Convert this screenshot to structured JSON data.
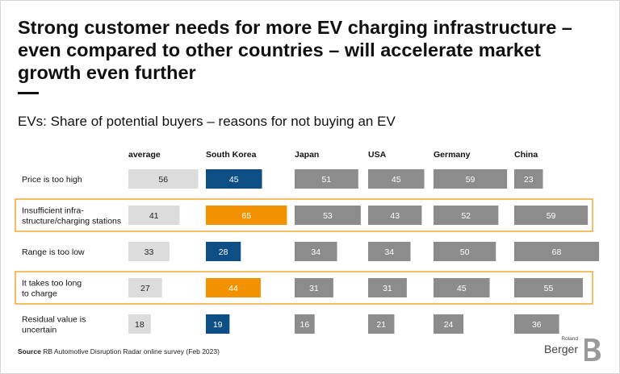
{
  "header": {
    "title": "Strong customer needs for more EV charging infrastructure – even compared to other countries – will accelerate market growth even further",
    "subtitle": "EVs: Share of potential buyers – reasons for not buying an EV"
  },
  "chart_data": {
    "type": "bar",
    "columns": [
      "average",
      "South Korea",
      "Japan",
      "USA",
      "Germany",
      "China"
    ],
    "categories": [
      "Price is too high",
      "Insufficient infrastructure/charging stations",
      "Range is too low",
      "It takes too long to charge",
      "Residual value is uncertain"
    ],
    "category_lines": [
      [
        "Price is too high"
      ],
      [
        "Insufficient infra-",
        "structure/charging stations"
      ],
      [
        "Range is too low"
      ],
      [
        "It takes too long",
        "to charge"
      ],
      [
        "Residual value is",
        "uncertain"
      ]
    ],
    "series": [
      {
        "name": "average",
        "values": [
          56,
          41,
          33,
          27,
          18
        ]
      },
      {
        "name": "South Korea",
        "values": [
          45,
          65,
          28,
          44,
          19
        ]
      },
      {
        "name": "Japan",
        "values": [
          51,
          53,
          34,
          31,
          16
        ]
      },
      {
        "name": "USA",
        "values": [
          45,
          43,
          34,
          31,
          21
        ]
      },
      {
        "name": "Germany",
        "values": [
          59,
          52,
          50,
          45,
          24
        ]
      },
      {
        "name": "China",
        "values": [
          23,
          59,
          68,
          55,
          36
        ]
      }
    ],
    "highlighted_rows": [
      1,
      3
    ],
    "colors": {
      "average": "#dcdcdc",
      "south_korea": "#0d4f85",
      "south_korea_highlight": "#f39200",
      "others": "#8c8c8c",
      "highlight_frame": "#f39200"
    }
  },
  "footer": {
    "source_label": "Source",
    "source_text": "RB Automotive Disruption Radar online survey (Feb 2023)"
  },
  "logo": {
    "line1": "Roland",
    "line2": "Berger"
  }
}
